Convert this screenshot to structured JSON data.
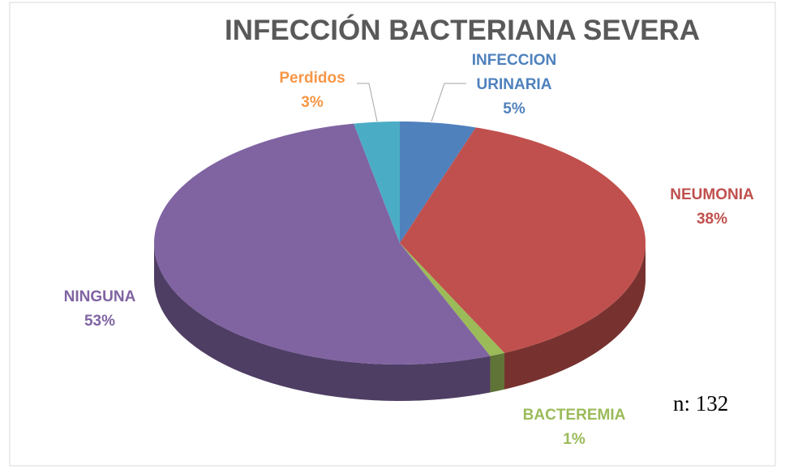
{
  "chart_data": {
    "type": "pie",
    "title": "INFECCIÓN BACTERIANA SEVERA",
    "categories": [
      "INFECCION URINARIA",
      "NEUMONIA",
      "BACTEREMIA",
      "NINGUNA",
      "Perdidos"
    ],
    "values": [
      5,
      38,
      1,
      53,
      3
    ],
    "value_labels": [
      "5%",
      "38%",
      "1%",
      "53%",
      "3%"
    ],
    "colors": [
      "#4f81bd",
      "#c0504d",
      "#9bbb59",
      "#8064a2",
      "#4bacc6"
    ],
    "label_colors": [
      "#4f81bd",
      "#c0504d",
      "#9bbb59",
      "#8064a2",
      "#f79646"
    ],
    "annotation": "n: 132"
  }
}
